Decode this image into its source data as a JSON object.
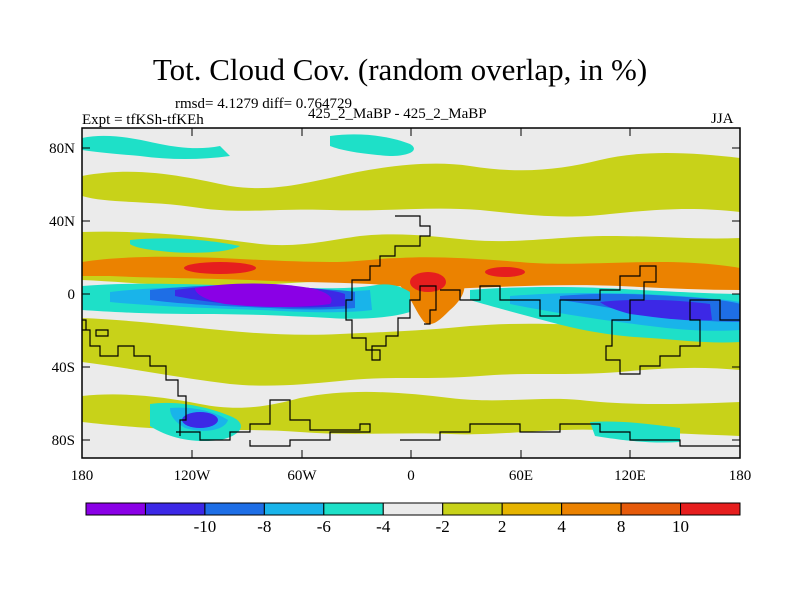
{
  "title": "Tot. Cloud Cov. (random overlap, in %)",
  "stats": "rmsd= 4.1279 diff= 0.764729",
  "experiment": "Expt = tfKSh-tfKEh",
  "comparison": "425_2_MaBP - 425_2_MaBP",
  "season": "JJA",
  "axes": {
    "x_ticks": [
      "180",
      "120W",
      "60W",
      "0",
      "60E",
      "120E",
      "180"
    ],
    "y_ticks": [
      "80N",
      "40N",
      "0",
      "40S",
      "80S"
    ]
  },
  "colorbar": {
    "colors": [
      "#8a00e6",
      "#3c28e6",
      "#1e6ee6",
      "#19b4ea",
      "#1ee0c8",
      "#ebebeb",
      "#c8d219",
      "#e6b400",
      "#eb8200",
      "#e65a0a",
      "#e61e1e"
    ],
    "labels": [
      "-10",
      "-8",
      "-6",
      "-4",
      "-2",
      "2",
      "4",
      "8",
      "10"
    ]
  }
}
